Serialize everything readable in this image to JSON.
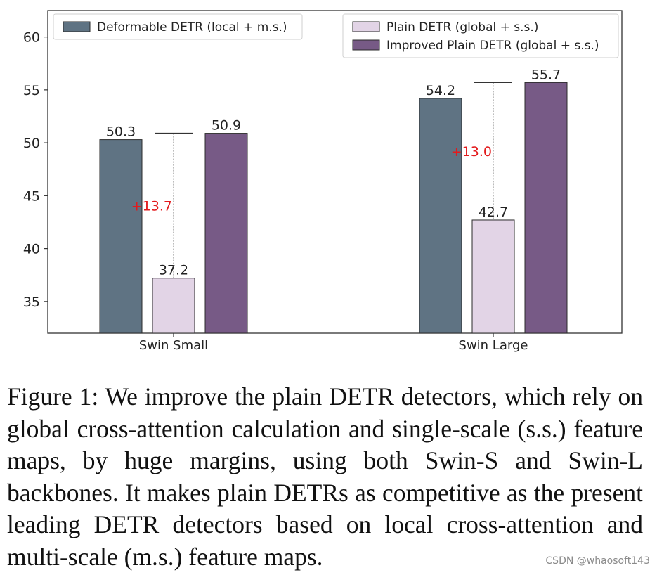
{
  "chart_data": {
    "type": "bar",
    "categories": [
      "Swin Small",
      "Swin Large"
    ],
    "series": [
      {
        "name": "Deformable DETR (local + m.s.)",
        "values": [
          50.3,
          54.2
        ],
        "color": "#5f7383"
      },
      {
        "name": "Plain DETR (global + s.s.)",
        "values": [
          37.2,
          42.7
        ],
        "color": "#e2d4e6"
      },
      {
        "name": "Improved Plain DETR (global + s.s.)",
        "values": [
          50.9,
          55.7
        ],
        "color": "#775a86"
      }
    ],
    "value_labels": [
      [
        "50.3",
        "54.2"
      ],
      [
        "37.2",
        "42.7"
      ],
      [
        "50.9",
        "55.7"
      ]
    ],
    "improvements": [
      {
        "category": "Swin Small",
        "from": 37.2,
        "to": 50.9,
        "label": "+13.7"
      },
      {
        "category": "Swin Large",
        "from": 42.7,
        "to": 55.7,
        "label": "+13.0"
      }
    ],
    "improvement_color": "#e31a1c",
    "ylim": [
      32,
      62.5
    ],
    "yticks": [
      35,
      40,
      45,
      50,
      55,
      60
    ],
    "yticklabels": [
      "35",
      "40",
      "45",
      "50",
      "55",
      "60"
    ],
    "xlabel": "",
    "ylabel": "",
    "grid": false,
    "legend": {
      "left_group": [
        0
      ],
      "right_group": [
        1,
        2
      ],
      "placement": "top"
    }
  },
  "caption": {
    "text": "Figure 1: We improve the plain DETR detectors, which rely on global cross-attention calculation and single-scale (s.s.) feature maps, by huge margins, using both Swin-S and Swin-L backbones. It makes plain DETRs as competitive as the present leading DETR detectors based on local cross-attention and multi-scale (m.s.) feature maps."
  },
  "watermark": "CSDN @whaosoft143"
}
